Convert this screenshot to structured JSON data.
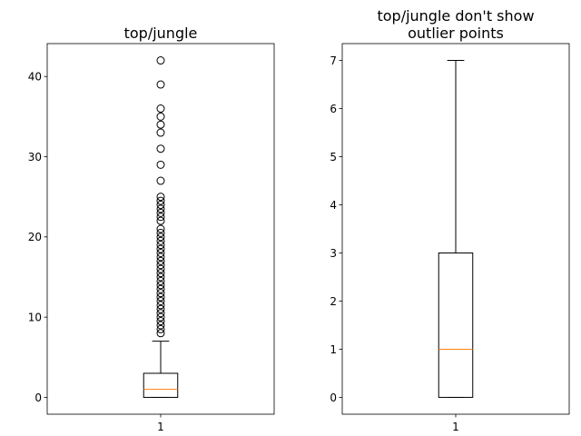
{
  "chart_data": [
    {
      "type": "box",
      "title_lines": [
        "top/jungle"
      ],
      "categories": [
        "1"
      ],
      "ylim": [
        -2.1,
        44.1
      ],
      "yticks": [
        0,
        10,
        20,
        30,
        40
      ],
      "box": {
        "min": 0,
        "q1": 0,
        "median": 1,
        "q3": 3,
        "max": 7
      },
      "show_outliers": true,
      "outliers": [
        8,
        8.5,
        9,
        9.5,
        10,
        10.5,
        11,
        11.5,
        12,
        12.5,
        13,
        13.5,
        14,
        14.5,
        15,
        15.5,
        16,
        16.5,
        17,
        17.5,
        18,
        18.5,
        19,
        19.5,
        20,
        20.5,
        21,
        22,
        22.5,
        23,
        23.5,
        24,
        24.5,
        25,
        27,
        29,
        31,
        33,
        34,
        35,
        36,
        39,
        42
      ],
      "grid": false,
      "colors": {
        "box": "#000000",
        "median": "#ff7f0e",
        "outlier": "#000000"
      }
    },
    {
      "type": "box",
      "title_lines": [
        "top/jungle don't show",
        "outlier points"
      ],
      "categories": [
        "1"
      ],
      "ylim": [
        -0.35,
        7.35
      ],
      "yticks": [
        0,
        1,
        2,
        3,
        4,
        5,
        6,
        7
      ],
      "box": {
        "min": 0,
        "q1": 0,
        "median": 1,
        "q3": 3,
        "max": 7
      },
      "show_outliers": false,
      "outliers": [],
      "grid": false,
      "colors": {
        "box": "#000000",
        "median": "#ff7f0e",
        "outlier": "#000000"
      }
    }
  ]
}
